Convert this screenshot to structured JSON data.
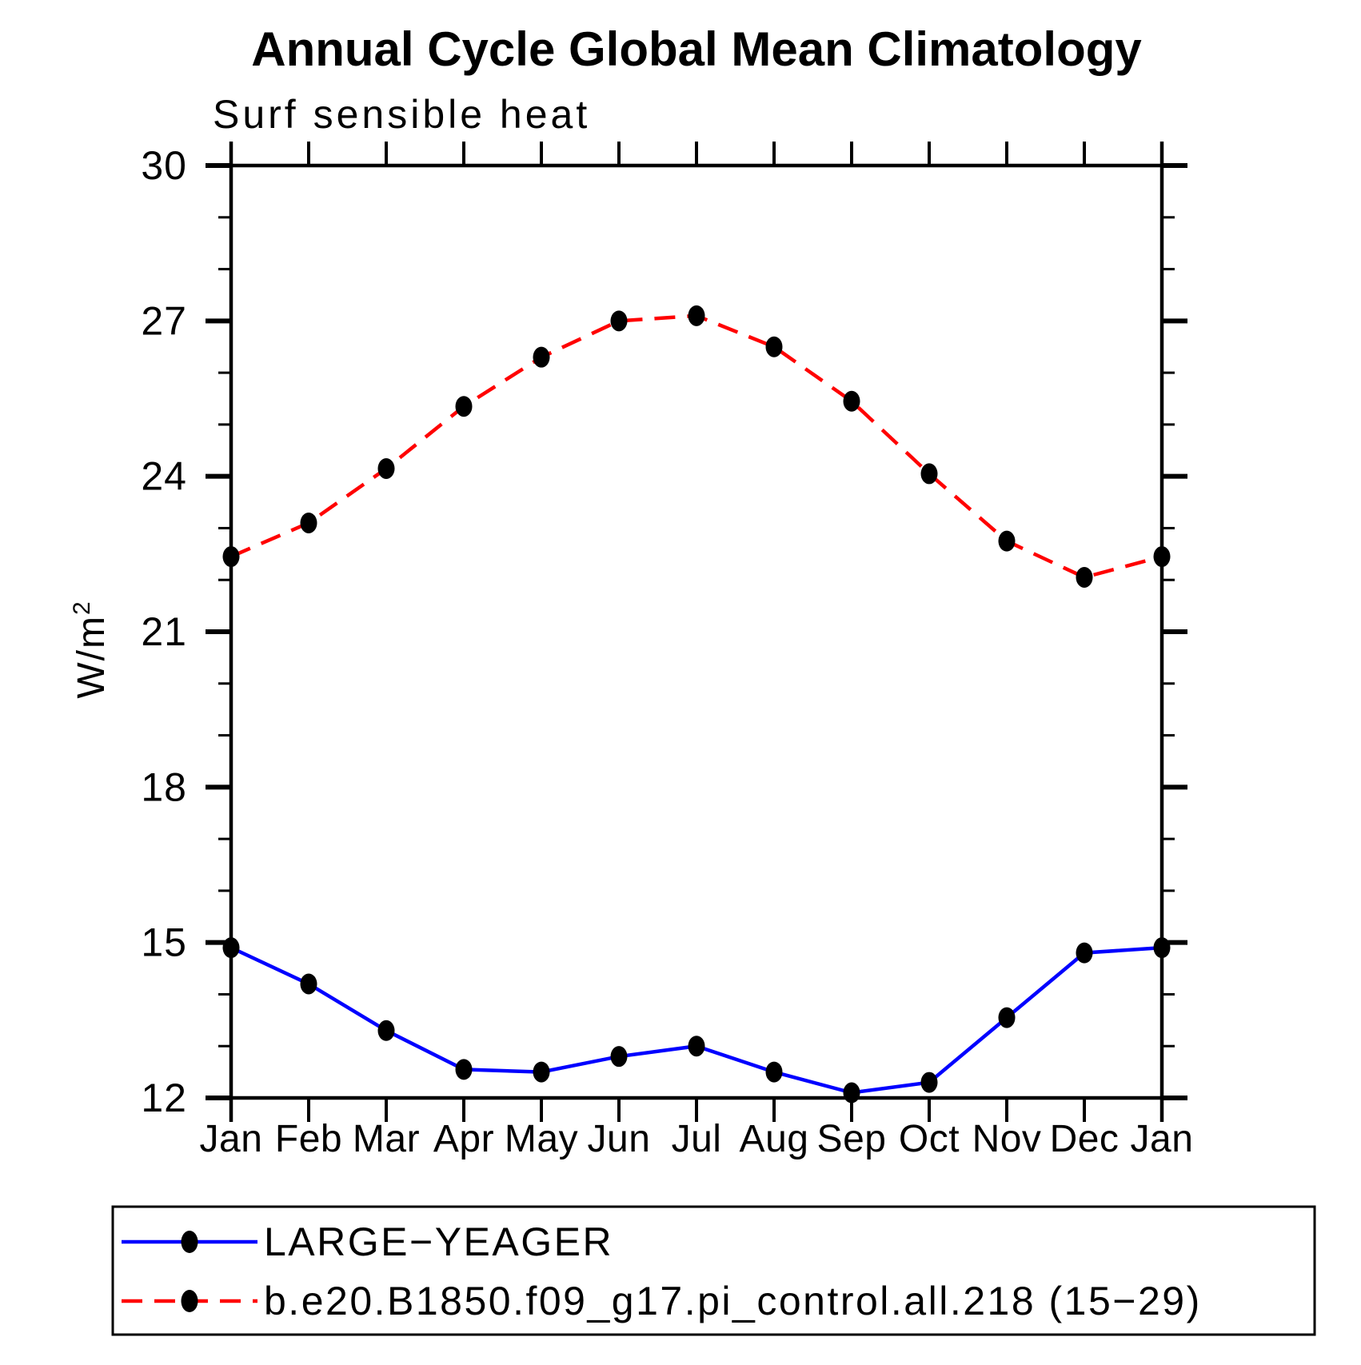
{
  "page": {
    "background": "#ffffff",
    "text_color": "#000000",
    "axis_color": "#000000"
  },
  "chart_data": {
    "type": "line",
    "title": "Annual Cycle Global Mean Climatology",
    "subtitle": "Surf sensible heat",
    "ylabel_base": "W/m",
    "ylabel_exponent": "2",
    "xlabel": "",
    "ylim": [
      12,
      30
    ],
    "yticks_major": [
      12,
      15,
      18,
      21,
      24,
      27,
      30
    ],
    "ytick_minor_step": 1,
    "grid": false,
    "legend_position": "bottom-box",
    "categories": [
      "Jan",
      "Feb",
      "Mar",
      "Apr",
      "May",
      "Jun",
      "Jul",
      "Aug",
      "Sep",
      "Oct",
      "Nov",
      "Dec",
      "Jan"
    ],
    "series": [
      {
        "name": "LARGE−YEAGER",
        "color": "#0000ff",
        "line_style": "solid",
        "marker": "filled-circle",
        "marker_color": "#000000",
        "values": [
          14.9,
          14.2,
          13.3,
          12.55,
          12.5,
          12.8,
          13.0,
          12.5,
          12.1,
          12.3,
          13.55,
          14.8,
          14.9
        ]
      },
      {
        "name": "b.e20.B1850.f09_g17.pi_control.all.218 (15−29)",
        "color": "#ff0000",
        "line_style": "dashed",
        "marker": "filled-circle",
        "marker_color": "#000000",
        "values": [
          22.45,
          23.1,
          24.15,
          25.35,
          26.3,
          27.0,
          27.1,
          26.5,
          25.45,
          24.05,
          22.75,
          22.05,
          22.45
        ]
      }
    ]
  }
}
